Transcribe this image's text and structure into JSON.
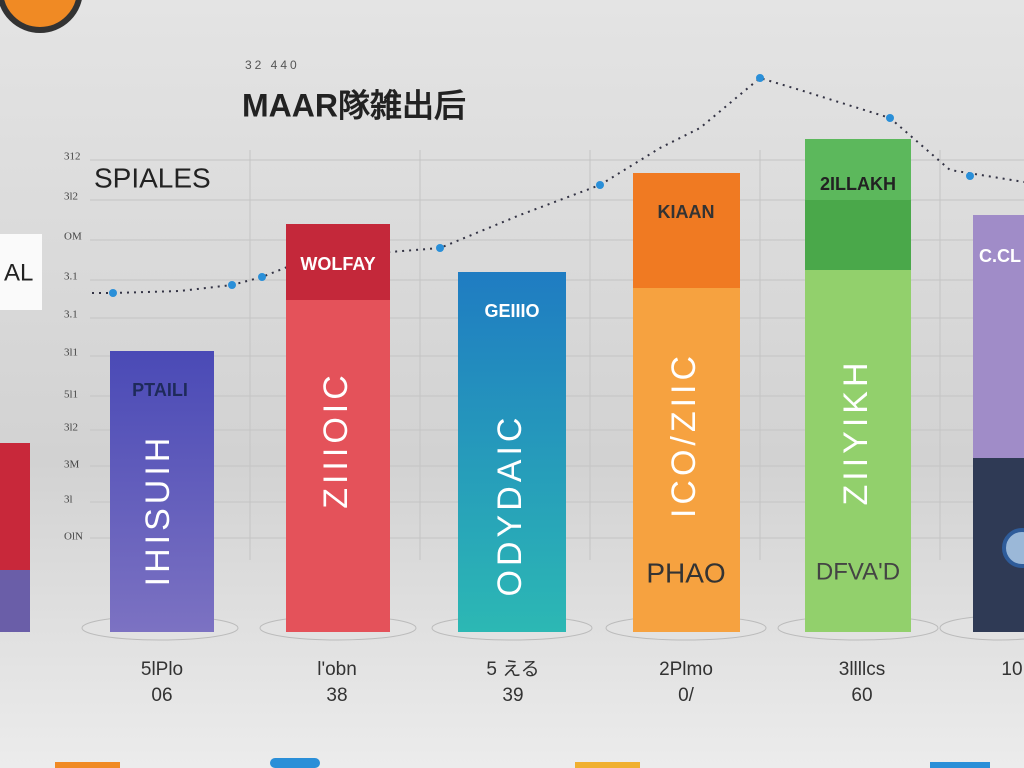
{
  "header": {
    "top_numbers": "32 440",
    "title": "MAAR隊雑出后",
    "subtitle": "SPIALES",
    "side_label": "AL"
  },
  "axis_labels": [
    "312",
    "3l2",
    "OM",
    "3.1",
    "3.1",
    "3l1",
    "5l1",
    "3l2",
    "3M",
    "3l",
    "OlN"
  ],
  "bars": [
    {
      "label": "PTAILI",
      "vertical_text": "IHISUIH",
      "caption": [
        "5lPlo",
        "06"
      ]
    },
    {
      "label": "WOLFAY",
      "vertical_text": "ZIIIOIC",
      "caption": [
        "l'obn",
        "38"
      ]
    },
    {
      "label": "GEIIIO",
      "vertical_text": "ODYDAIC",
      "caption": [
        "5 える",
        "39"
      ]
    },
    {
      "label": "KIAAN",
      "vertical_text": "ICO/ZIIC",
      "bottom_text": "PHAO",
      "caption": [
        "2Plmo",
        "0/"
      ]
    },
    {
      "label": "2ILLAKH",
      "vertical_text": "ZIIYIKH",
      "bottom_text": "DFVA'D",
      "caption": [
        "3llllcs",
        "60"
      ]
    },
    {
      "label": "C.CL",
      "caption": [
        "10"
      ]
    }
  ]
}
